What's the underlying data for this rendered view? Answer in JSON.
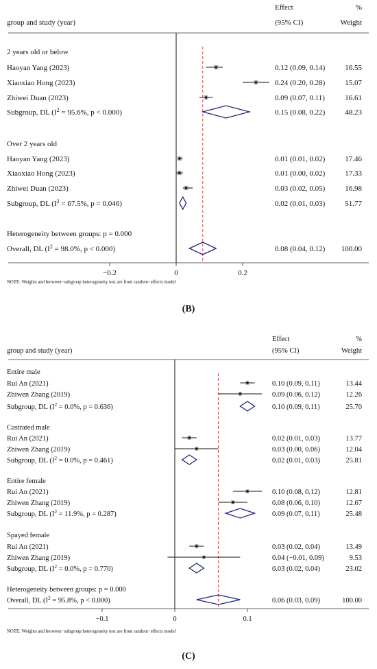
{
  "chart_data": [
    {
      "type": "forest",
      "panel_label": "(B)",
      "header": {
        "left": "group and study (year)",
        "effect_line1": "Effect",
        "effect_line2": "(95% CI)",
        "weight_line1": "%",
        "weight_line2": "Weight"
      },
      "groups": [
        {
          "title": "2 years old or below",
          "studies": [
            {
              "label": "Haoyan Yang (2023)",
              "effect": 0.12,
              "lo": 0.09,
              "hi": 0.14,
              "ci_text": "0.12 (0.09, 0.14)",
              "weight": "16.55"
            },
            {
              "label": "Xiaoxiao Hong (2023)",
              "effect": 0.24,
              "lo": 0.2,
              "hi": 0.28,
              "ci_text": "0.24 (0.20, 0.28)",
              "weight": "15.07"
            },
            {
              "label": "Zhiwei Duan (2023)",
              "effect": 0.09,
              "lo": 0.07,
              "hi": 0.11,
              "ci_text": "0.09 (0.07, 0.11)",
              "weight": "16.61"
            }
          ],
          "subgroup": {
            "label_pre": "Subgroup, DL (I",
            "label_post": " = 95.6%, p < 0.000)",
            "effect": 0.15,
            "lo": 0.08,
            "hi": 0.22,
            "ci_text": "0.15 (0.08, 0.22)",
            "weight": "48.23"
          }
        },
        {
          "title": "Over 2 years old",
          "studies": [
            {
              "label": "Haoyan Yang (2023)",
              "effect": 0.01,
              "lo": 0.01,
              "hi": 0.02,
              "ci_text": "0.01 (0.01, 0.02)",
              "weight": "17.46"
            },
            {
              "label": "Xiaoxiao Hong (2023)",
              "effect": 0.01,
              "lo": 0.0,
              "hi": 0.02,
              "ci_text": "0.01 (0.00, 0.02)",
              "weight": "17.33"
            },
            {
              "label": "Zhiwei Duan (2023)",
              "effect": 0.03,
              "lo": 0.02,
              "hi": 0.05,
              "ci_text": "0.03 (0.02, 0.05)",
              "weight": "16.98"
            }
          ],
          "subgroup": {
            "label_pre": "Subgroup, DL (I",
            "label_post": " = 67.5%, p = 0.046)",
            "effect": 0.02,
            "lo": 0.01,
            "hi": 0.03,
            "ci_text": "0.02 (0.01, 0.03)",
            "weight": "51.77"
          }
        }
      ],
      "heterogeneity_text": "Heterogeneity between groups: p = 0.000",
      "overall": {
        "label_pre": "Overall, DL (I",
        "label_post": " = 98.0%, p < 0.000)",
        "effect": 0.08,
        "lo": 0.04,
        "hi": 0.12,
        "ci_text": "0.08 (0.04, 0.12)",
        "weight": "100.00"
      },
      "xlim": [
        -0.33,
        0.33
      ],
      "ticks": [
        -0.2,
        0,
        0.2
      ],
      "tick_labels": [
        "−0.2",
        "0",
        "0.2"
      ],
      "note": "NOTE: Weights and between−subgroup heterogeneity test are from random−effects model",
      "colors": {
        "marker": "#111111",
        "diamond": "#1a237e",
        "reference": "#c0392b",
        "line": "#111111"
      }
    },
    {
      "type": "forest",
      "panel_label": "(C)",
      "header": {
        "left": "group and study (year)",
        "effect_line1": "Effect",
        "effect_line2": "(95% CI)",
        "weight_line1": "%",
        "weight_line2": "Weight"
      },
      "groups": [
        {
          "title": "Entire male",
          "studies": [
            {
              "label": "Rui An (2021)",
              "effect": 0.1,
              "lo": 0.09,
              "hi": 0.11,
              "ci_text": "0.10 (0.09, 0.11)",
              "weight": "13.44"
            },
            {
              "label": "Zhiwen Zhang (2019)",
              "effect": 0.09,
              "lo": 0.06,
              "hi": 0.12,
              "ci_text": "0.09 (0.06, 0.12)",
              "weight": "12.26"
            }
          ],
          "subgroup": {
            "label_pre": "Subgroup, DL (I",
            "label_post": " = 0.0%, p = 0.636)",
            "effect": 0.1,
            "lo": 0.09,
            "hi": 0.11,
            "ci_text": "0.10 (0.09, 0.11)",
            "weight": "25.70"
          }
        },
        {
          "title": "Castrated male",
          "studies": [
            {
              "label": "Rui An (2021)",
              "effect": 0.02,
              "lo": 0.01,
              "hi": 0.03,
              "ci_text": "0.02 (0.01, 0.03)",
              "weight": "13.77"
            },
            {
              "label": "Zhiwen Zhang (2019)",
              "effect": 0.03,
              "lo": 0.0,
              "hi": 0.06,
              "ci_text": "0.03 (0.00, 0.06)",
              "weight": "12.04"
            }
          ],
          "subgroup": {
            "label_pre": "Subgroup, DL (I",
            "label_post": " = 0.0%, p = 0.461)",
            "effect": 0.02,
            "lo": 0.01,
            "hi": 0.03,
            "ci_text": "0.02 (0.01, 0.03)",
            "weight": "25.81"
          }
        },
        {
          "title": "Entire female",
          "studies": [
            {
              "label": "Rui An (2021)",
              "effect": 0.1,
              "lo": 0.08,
              "hi": 0.12,
              "ci_text": "0.10 (0.08, 0.12)",
              "weight": "12.81"
            },
            {
              "label": "Zhiwen Zhang (2019)",
              "effect": 0.08,
              "lo": 0.06,
              "hi": 0.1,
              "ci_text": "0.08 (0.06, 0.10)",
              "weight": "12.67"
            }
          ],
          "subgroup": {
            "label_pre": "Subgroup, DL (I",
            "label_post": " = 11.9%, p = 0.287)",
            "effect": 0.09,
            "lo": 0.07,
            "hi": 0.11,
            "ci_text": "0.09 (0.07, 0.11)",
            "weight": "25.48"
          }
        },
        {
          "title": "Spayed female",
          "studies": [
            {
              "label": "Rui An (2021)",
              "effect": 0.03,
              "lo": 0.02,
              "hi": 0.04,
              "ci_text": "0.03 (0.02, 0.04)",
              "weight": "13.49"
            },
            {
              "label": "Zhiwen Zhang (2019)",
              "effect": 0.04,
              "lo": -0.01,
              "hi": 0.09,
              "ci_text": "0.04 (−0.01, 0.09)",
              "weight": "9.53"
            }
          ],
          "subgroup": {
            "label_pre": "Subgroup, DL (I",
            "label_post": " = 0.0%, p = 0.770)",
            "effect": 0.03,
            "lo": 0.02,
            "hi": 0.04,
            "ci_text": "0.03 (0.02, 0.04)",
            "weight": "23.02"
          }
        }
      ],
      "heterogeneity_text": "Heterogeneity between groups: p = 0.000",
      "overall": {
        "label_pre": "Overall, DL (I",
        "label_post": " = 95.8%, p < 0.000)",
        "effect": 0.06,
        "lo": 0.03,
        "hi": 0.09,
        "ci_text": "0.06 (0.03, 0.09)",
        "weight": "100.00"
      },
      "xlim": [
        -0.155,
        0.155
      ],
      "ticks": [
        -0.1,
        0,
        0.1
      ],
      "tick_labels": [
        "−0.1",
        "0",
        "0.1"
      ],
      "note": "NOTE: Weights and between−subgroup heterogeneity test are from random−effects model",
      "colors": {
        "marker": "#111111",
        "diamond": "#1a237e",
        "reference": "#c0392b",
        "line": "#111111"
      }
    }
  ]
}
